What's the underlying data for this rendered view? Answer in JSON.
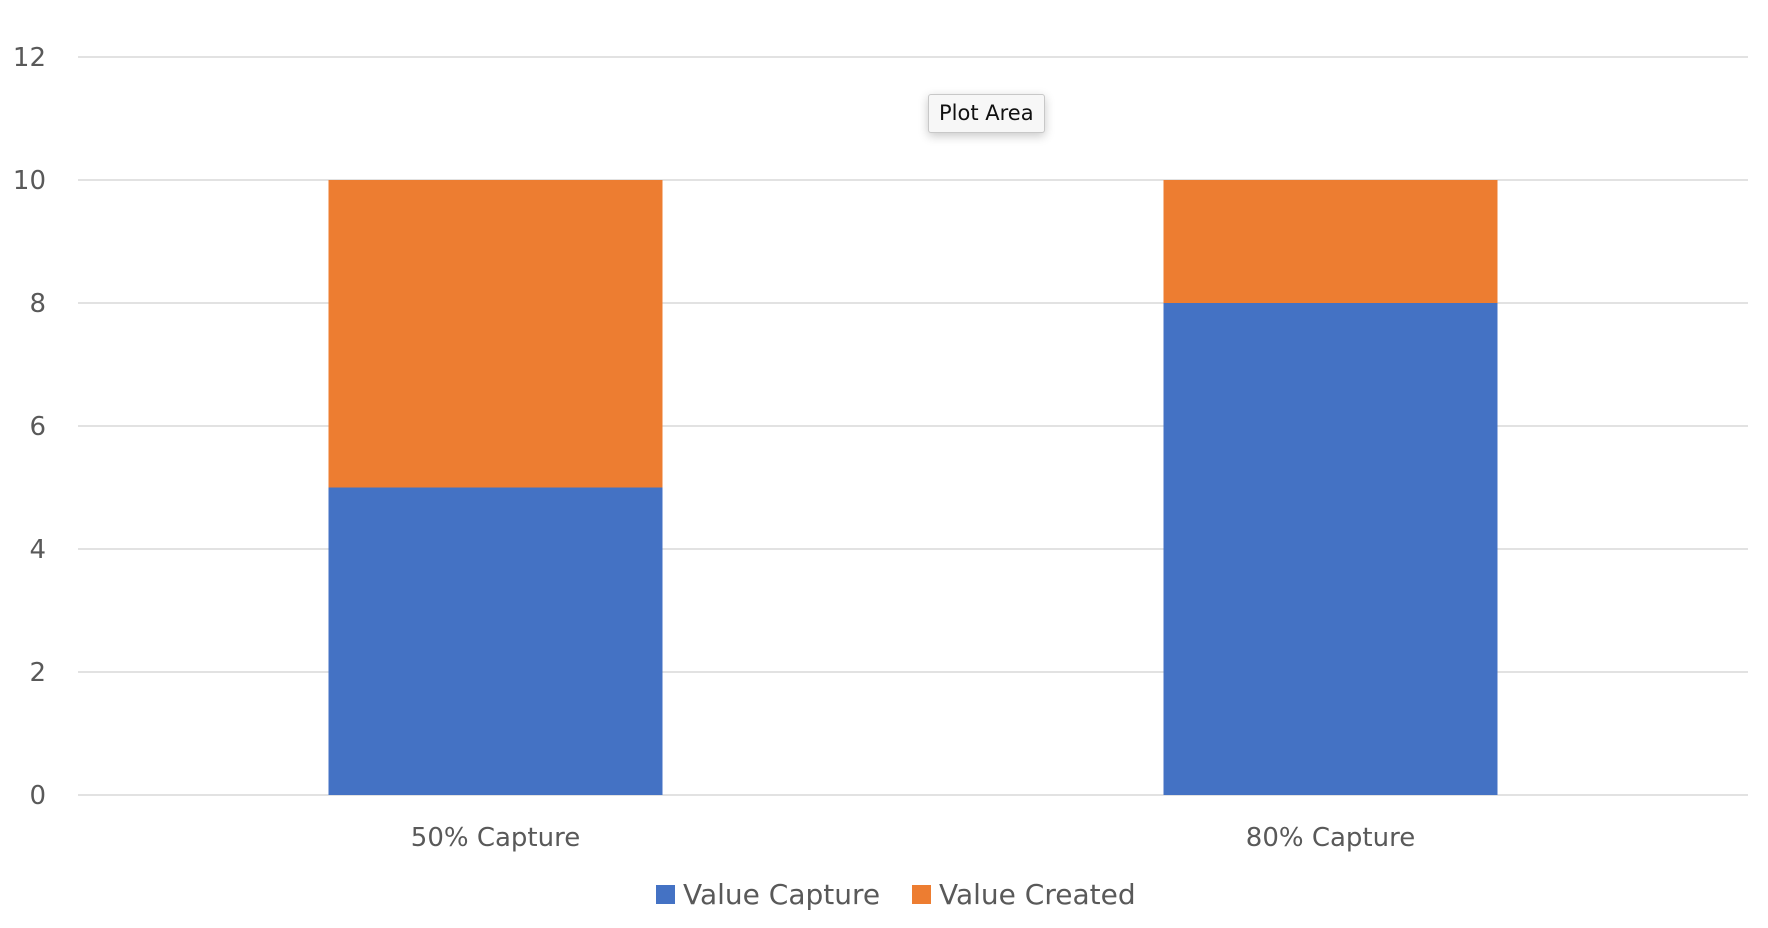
{
  "tooltip": {
    "text": "Plot Area"
  },
  "colors": {
    "value_capture": "#4472C4",
    "value_created": "#ED7D31",
    "gridline": "#d9d9d9",
    "axis_text": "#595959"
  },
  "chart_data": {
    "type": "bar",
    "stacked": true,
    "categories": [
      "50% Capture",
      "80% Capture"
    ],
    "series": [
      {
        "name": "Value Capture",
        "values": [
          5,
          8
        ],
        "color": "#4472C4"
      },
      {
        "name": "Value Created",
        "values": [
          5,
          2
        ],
        "color": "#ED7D31"
      }
    ],
    "title": "",
    "xlabel": "",
    "ylabel": "",
    "ylim": [
      0,
      12
    ],
    "yticks": [
      0,
      2,
      4,
      6,
      8,
      10,
      12
    ],
    "grid": true,
    "legend": "bottom-center"
  }
}
